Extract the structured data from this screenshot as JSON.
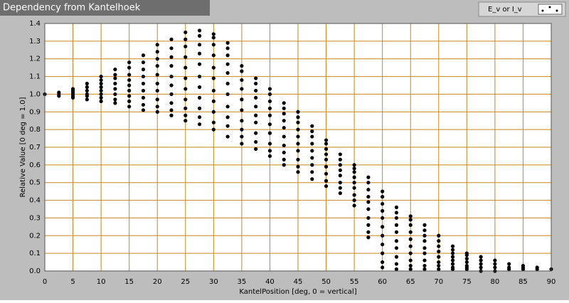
{
  "chart_data": {
    "type": "scatter",
    "title": "Dependency from Kantelhoek",
    "x_label": "KantelPosition [deg, 0 = vertical]",
    "y_label": "Relative Value [0 deg = 1.0]",
    "xlim": [
      0,
      90
    ],
    "ylim": [
      0,
      1.4
    ],
    "xticks": [
      0,
      5,
      10,
      15,
      20,
      25,
      30,
      35,
      40,
      45,
      50,
      55,
      60,
      65,
      70,
      75,
      80,
      85,
      90
    ],
    "yticks": [
      {
        "value": 0,
        "label": "0.0"
      },
      0.1,
      0.2,
      0.3,
      0.4,
      0.5,
      0.6,
      0.7,
      0.8,
      0.9,
      {
        "value": 1,
        "label": "1.0"
      },
      1.1,
      1.2,
      1.3,
      1.4
    ],
    "grid": true,
    "grid_color": "#c8861e",
    "legend": "upper right",
    "series": [
      {
        "name": "E_v or I_v",
        "color": "#000000",
        "x": [
          0,
          2.5,
          2.5,
          2.5,
          5,
          5,
          5,
          5,
          5,
          5,
          7.5,
          7.5,
          7.5,
          7.5,
          7.5,
          7.5,
          10,
          10,
          10,
          10,
          10,
          10,
          10,
          10,
          12.5,
          12.5,
          12.5,
          12.5,
          12.5,
          12.5,
          12.5,
          12.5,
          15,
          15,
          15,
          15,
          15,
          15,
          15,
          15,
          15,
          17.5,
          17.5,
          17.5,
          17.5,
          17.5,
          17.5,
          17.5,
          17.5,
          17.5,
          20,
          20,
          20,
          20,
          20,
          20,
          20,
          20,
          20,
          20,
          22.5,
          22.5,
          22.5,
          22.5,
          22.5,
          22.5,
          22.5,
          22.5,
          22.5,
          22.5,
          25,
          25,
          25,
          25,
          25,
          25,
          25,
          25,
          25,
          25,
          25,
          27.5,
          27.5,
          27.5,
          27.5,
          27.5,
          27.5,
          27.5,
          27.5,
          27.5,
          27.5,
          27.5,
          30,
          30,
          30,
          30,
          30,
          30,
          30,
          30,
          30,
          30,
          30,
          32.5,
          32.5,
          32.5,
          32.5,
          32.5,
          32.5,
          32.5,
          32.5,
          32.5,
          32.5,
          32.5,
          35,
          35,
          35,
          35,
          35,
          35,
          35,
          35,
          35,
          35,
          37.5,
          37.5,
          37.5,
          37.5,
          37.5,
          37.5,
          37.5,
          37.5,
          37.5,
          37.5,
          40,
          40,
          40,
          40,
          40,
          40,
          40,
          40,
          40,
          40,
          42.5,
          42.5,
          42.5,
          42.5,
          42.5,
          42.5,
          42.5,
          42.5,
          42.5,
          42.5,
          45,
          45,
          45,
          45,
          45,
          45,
          45,
          45,
          45,
          45,
          47.5,
          47.5,
          47.5,
          47.5,
          47.5,
          47.5,
          47.5,
          47.5,
          47.5,
          50,
          50,
          50,
          50,
          50,
          50,
          50,
          50,
          50,
          52.5,
          52.5,
          52.5,
          52.5,
          52.5,
          52.5,
          52.5,
          52.5,
          55,
          55,
          55,
          55,
          55,
          55,
          55,
          55,
          55,
          57.5,
          57.5,
          57.5,
          57.5,
          57.5,
          57.5,
          57.5,
          57.5,
          57.5,
          57.5,
          60,
          60,
          60,
          60,
          60,
          60,
          60,
          60,
          60,
          60,
          60,
          62.5,
          62.5,
          62.5,
          62.5,
          62.5,
          62.5,
          62.5,
          62.5,
          62.5,
          62.5,
          65,
          65,
          65,
          65,
          65,
          65,
          65,
          65,
          65,
          65,
          67.5,
          67.5,
          67.5,
          67.5,
          67.5,
          67.5,
          67.5,
          67.5,
          67.5,
          70,
          70,
          70,
          70,
          70,
          70,
          70,
          70,
          72.5,
          72.5,
          72.5,
          72.5,
          72.5,
          72.5,
          72.5,
          72.5,
          75,
          75,
          75,
          75,
          75,
          75,
          75,
          77.5,
          77.5,
          77.5,
          77.5,
          77.5,
          80,
          80,
          80,
          80,
          82.5,
          82.5,
          82.5,
          85,
          85,
          85,
          87.5,
          87.5,
          90
        ],
        "values": [
          1.0,
          0.99,
          1.0,
          1.01,
          0.98,
          0.99,
          1.0,
          1.01,
          1.02,
          1.03,
          0.97,
          0.99,
          1.0,
          1.02,
          1.04,
          1.06,
          0.96,
          0.98,
          1.0,
          1.02,
          1.04,
          1.06,
          1.08,
          1.1,
          0.95,
          0.97,
          1.0,
          1.03,
          1.06,
          1.09,
          1.11,
          1.14,
          0.93,
          0.96,
          0.99,
          1.02,
          1.05,
          1.08,
          1.11,
          1.15,
          1.18,
          0.91,
          0.94,
          0.98,
          1.02,
          1.06,
          1.1,
          1.14,
          1.18,
          1.22,
          0.9,
          0.93,
          0.97,
          1.02,
          1.06,
          1.11,
          1.16,
          1.2,
          1.24,
          1.28,
          0.88,
          0.91,
          0.95,
          1.0,
          1.05,
          1.1,
          1.16,
          1.21,
          1.26,
          1.31,
          0.85,
          0.88,
          0.92,
          0.97,
          1.03,
          1.09,
          1.15,
          1.21,
          1.27,
          1.31,
          1.35,
          0.83,
          0.87,
          0.92,
          0.98,
          1.04,
          1.1,
          1.17,
          1.23,
          1.28,
          1.33,
          1.36,
          0.8,
          0.84,
          0.9,
          0.96,
          1.02,
          1.09,
          1.15,
          1.22,
          1.28,
          1.32,
          1.34,
          0.76,
          0.82,
          0.87,
          0.93,
          1.0,
          1.06,
          1.12,
          1.17,
          1.22,
          1.26,
          1.29,
          0.72,
          0.76,
          0.8,
          0.85,
          0.91,
          0.97,
          1.03,
          1.08,
          1.13,
          1.16,
          0.69,
          0.73,
          0.78,
          0.84,
          0.88,
          0.93,
          0.98,
          1.02,
          1.06,
          1.09,
          0.65,
          0.68,
          0.72,
          0.78,
          0.83,
          0.88,
          0.92,
          0.96,
          1.0,
          1.03,
          0.6,
          0.63,
          0.67,
          0.71,
          0.76,
          0.81,
          0.85,
          0.89,
          0.92,
          0.95,
          0.56,
          0.59,
          0.63,
          0.68,
          0.72,
          0.76,
          0.8,
          0.84,
          0.87,
          0.9,
          0.52,
          0.56,
          0.6,
          0.64,
          0.68,
          0.72,
          0.76,
          0.79,
          0.82,
          0.48,
          0.51,
          0.55,
          0.59,
          0.63,
          0.66,
          0.69,
          0.72,
          0.74,
          0.44,
          0.47,
          0.5,
          0.54,
          0.57,
          0.6,
          0.63,
          0.66,
          0.37,
          0.4,
          0.43,
          0.47,
          0.5,
          0.53,
          0.56,
          0.58,
          0.6,
          0.19,
          0.22,
          0.26,
          0.3,
          0.35,
          0.39,
          0.42,
          0.46,
          0.5,
          0.53,
          0.02,
          0.05,
          0.1,
          0.15,
          0.2,
          0.25,
          0.3,
          0.34,
          0.38,
          0.42,
          0.45,
          0.01,
          0.04,
          0.08,
          0.13,
          0.17,
          0.22,
          0.26,
          0.3,
          0.33,
          0.36,
          0.01,
          0.03,
          0.06,
          0.1,
          0.14,
          0.18,
          0.22,
          0.26,
          0.29,
          0.31,
          0.01,
          0.03,
          0.06,
          0.1,
          0.13,
          0.17,
          0.2,
          0.23,
          0.26,
          0.01,
          0.03,
          0.05,
          0.08,
          0.11,
          0.14,
          0.17,
          0.2,
          0.01,
          0.02,
          0.04,
          0.06,
          0.08,
          0.1,
          0.12,
          0.14,
          0.01,
          0.02,
          0.03,
          0.05,
          0.07,
          0.09,
          0.1,
          0,
          0.02,
          0.04,
          0.06,
          0.08,
          0,
          0.02,
          0.04,
          0.06,
          0.01,
          0.02,
          0.04,
          0.01,
          0.02,
          0.03,
          0.01,
          0.02,
          0.01
        ]
      }
    ]
  }
}
